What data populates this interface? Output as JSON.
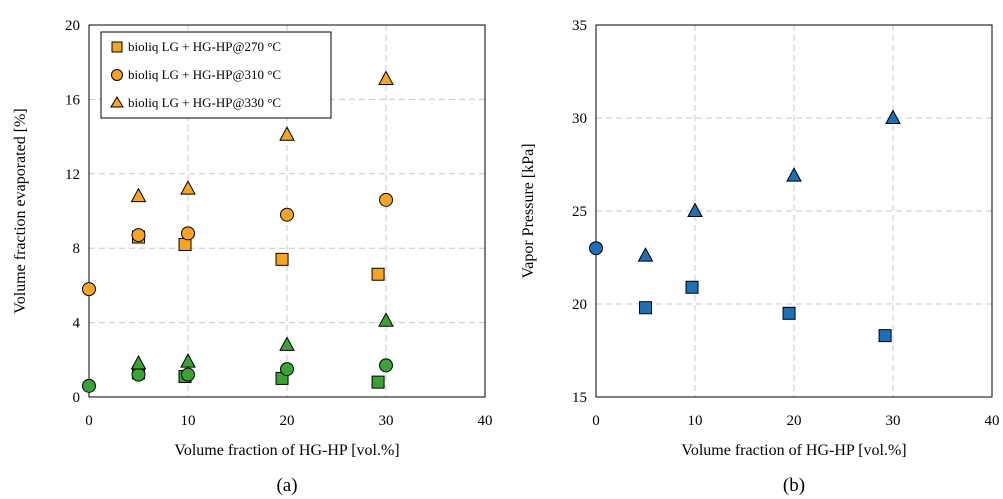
{
  "chart_data": [
    {
      "type": "scatter",
      "panel": "(a)",
      "xlabel": "Volume fraction of HG-HP [vol.%]",
      "ylabel": "Volume fraction evaporated [%]",
      "xlim": [
        0,
        40
      ],
      "ylim": [
        0,
        20
      ],
      "xticks": [
        "0",
        "10",
        "20",
        "30",
        "40"
      ],
      "yticks": [
        "0",
        "4",
        "8",
        "12",
        "16",
        "20"
      ],
      "grid": true,
      "legend": "top-left",
      "series": [
        {
          "name": "bioliq LG + HG-HP@270 °C",
          "marker": "square",
          "color": "#f5a425",
          "x": [
            5,
            9.7,
            19.5,
            29.2
          ],
          "y": [
            8.6,
            8.2,
            7.4,
            6.6
          ]
        },
        {
          "name": "bioliq LG + HG-HP@310 °C",
          "marker": "circle",
          "color": "#f5a425",
          "x": [
            0,
            5,
            10,
            20,
            30
          ],
          "y": [
            5.8,
            8.7,
            8.8,
            9.8,
            10.6
          ]
        },
        {
          "name": "bioliq LG + HG-HP@330 °C",
          "marker": "triangle",
          "color": "#f5a425",
          "x": [
            5,
            10,
            20,
            30
          ],
          "y": [
            10.8,
            11.2,
            14.1,
            17.1
          ]
        },
        {
          "marker": "square",
          "color": "#3aa335",
          "x": [
            5,
            9.7,
            19.5,
            29.2
          ],
          "y": [
            1.3,
            1.1,
            1.0,
            0.8
          ]
        },
        {
          "marker": "circle",
          "color": "#3aa335",
          "x": [
            0,
            5,
            10,
            20,
            30
          ],
          "y": [
            0.6,
            1.2,
            1.2,
            1.5,
            1.7
          ]
        },
        {
          "marker": "triangle",
          "color": "#3aa335",
          "x": [
            5,
            10,
            20,
            30
          ],
          "y": [
            1.8,
            1.9,
            2.8,
            4.1
          ]
        }
      ]
    },
    {
      "type": "scatter",
      "panel": "(b)",
      "xlabel": "Volume fraction of HG-HP [vol.%]",
      "ylabel": "Vapor Pressure [kPa]",
      "xlim": [
        0,
        40
      ],
      "ylim": [
        15,
        35
      ],
      "xticks": [
        "0",
        "10",
        "20",
        "30",
        "40"
      ],
      "yticks": [
        "15",
        "20",
        "25",
        "30",
        "35"
      ],
      "grid": true,
      "series": [
        {
          "marker": "square",
          "color": "#1f6fb4",
          "x": [
            5,
            9.7,
            19.5,
            29.2
          ],
          "y": [
            19.8,
            20.9,
            19.5,
            18.3
          ]
        },
        {
          "marker": "circle",
          "color": "#1f6fb4",
          "x": [
            0
          ],
          "y": [
            23.0
          ]
        },
        {
          "marker": "triangle",
          "color": "#1f6fb4",
          "x": [
            5,
            10,
            20,
            30
          ],
          "y": [
            22.6,
            25.0,
            26.9,
            30.0
          ]
        }
      ]
    }
  ]
}
